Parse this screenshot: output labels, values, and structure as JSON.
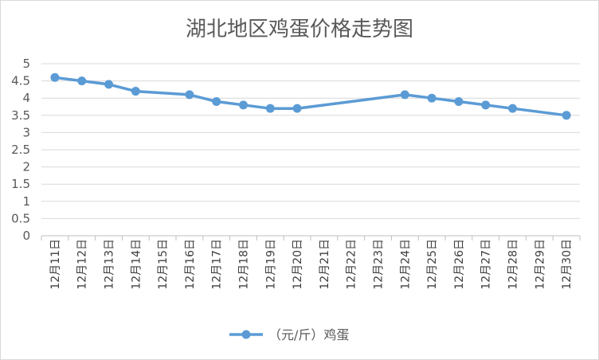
{
  "chart_data": {
    "type": "line",
    "title": "湖北地区鸡蛋价格走势图",
    "categories": [
      "12月11日",
      "12月12日",
      "12月13日",
      "12月14日",
      "12月15日",
      "12月16日",
      "12月17日",
      "12月18日",
      "12月19日",
      "12月20日",
      "12月21日",
      "12月22日",
      "12月23日",
      "12月24日",
      "12月25日",
      "12月26日",
      "12月27日",
      "12月28日",
      "12月29日",
      "12月30日"
    ],
    "series": [
      {
        "name": "（元/斤）鸡蛋",
        "values": [
          4.6,
          4.5,
          4.4,
          4.2,
          null,
          4.1,
          3.9,
          3.8,
          3.7,
          3.7,
          null,
          null,
          null,
          4.1,
          4.0,
          3.9,
          3.8,
          3.7,
          null,
          3.5
        ],
        "color": "#5b9bd5"
      }
    ],
    "ylim": [
      0,
      5
    ],
    "yticks": [
      "0",
      "0.5",
      "1",
      "1.5",
      "2",
      "2.5",
      "3",
      "3.5",
      "4",
      "4.5",
      "5"
    ],
    "grid": true,
    "gap_handling": "connect",
    "legend_position": "bottom"
  }
}
